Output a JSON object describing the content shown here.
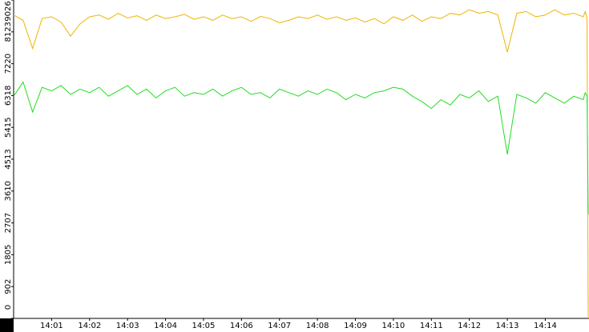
{
  "chart_data": {
    "type": "line",
    "x": [
      0,
      0.25,
      0.5,
      0.75,
      1,
      1.25,
      1.5,
      1.75,
      2,
      2.25,
      2.5,
      2.75,
      3,
      3.25,
      3.5,
      3.75,
      4,
      4.25,
      4.5,
      4.75,
      5,
      5.25,
      5.5,
      5.75,
      6,
      6.25,
      6.5,
      6.75,
      7,
      7.25,
      7.5,
      7.75,
      8,
      8.25,
      8.5,
      8.75,
      9,
      9.25,
      9.5,
      9.75,
      10,
      10.25,
      10.5,
      10.75,
      11,
      11.25,
      11.5,
      11.75,
      12,
      12.25,
      12.5,
      12.75,
      13,
      13.25,
      13.5,
      13.75,
      14,
      14.25,
      14.5,
      14.75,
      15,
      15.05,
      15.1,
      15.13
    ],
    "series": [
      {
        "color": "#f0b400",
        "values": [
          8600,
          8450,
          7650,
          8500,
          8550,
          8400,
          8000,
          8350,
          8550,
          8600,
          8480,
          8650,
          8520,
          8580,
          8450,
          8600,
          8500,
          8550,
          8620,
          8480,
          8550,
          8450,
          8600,
          8500,
          8550,
          8420,
          8560,
          8500,
          8380,
          8450,
          8550,
          8500,
          8600,
          8480,
          8550,
          8450,
          8520,
          8400,
          8500,
          8350,
          8550,
          8450,
          8600,
          8420,
          8550,
          8500,
          8650,
          8600,
          8750,
          8650,
          8700,
          8600,
          7550,
          8650,
          8700,
          8550,
          8600,
          8750,
          8600,
          8650,
          8550,
          8700,
          8500,
          0
        ]
      },
      {
        "color": "#22dd22",
        "values": [
          6300,
          6700,
          5850,
          6550,
          6450,
          6600,
          6350,
          6500,
          6400,
          6550,
          6300,
          6450,
          6600,
          6350,
          6500,
          6250,
          6450,
          6550,
          6300,
          6400,
          6350,
          6500,
          6300,
          6450,
          6550,
          6350,
          6400,
          6250,
          6500,
          6400,
          6300,
          6450,
          6350,
          6500,
          6400,
          6200,
          6350,
          6250,
          6400,
          6450,
          6550,
          6500,
          6300,
          6150,
          5950,
          6200,
          6050,
          6350,
          6250,
          6450,
          6150,
          6300,
          4650,
          6350,
          6250,
          6100,
          6400,
          6250,
          6100,
          6300,
          6200,
          6400,
          6300,
          2950
        ]
      }
    ],
    "xlim": [
      0,
      15.13
    ],
    "xticks": [
      {
        "value": 1,
        "label": "14:01"
      },
      {
        "value": 2,
        "label": "14:02"
      },
      {
        "value": 3,
        "label": "14:03"
      },
      {
        "value": 4,
        "label": "14:04"
      },
      {
        "value": 5,
        "label": "14:05"
      },
      {
        "value": 6,
        "label": "14:06"
      },
      {
        "value": 7,
        "label": "14:07"
      },
      {
        "value": 8,
        "label": "14:08"
      },
      {
        "value": 9,
        "label": "14:09"
      },
      {
        "value": 10,
        "label": "14:10"
      },
      {
        "value": 11,
        "label": "14:11"
      },
      {
        "value": 12,
        "label": "14:12"
      },
      {
        "value": 13,
        "label": "14:13"
      },
      {
        "value": 14,
        "label": "14:14"
      }
    ],
    "ylim": [
      0,
      9026
    ],
    "yticks": [
      0,
      902,
      1805,
      2707,
      3610,
      4513,
      5415,
      6318,
      7220,
      8123,
      9026
    ]
  }
}
